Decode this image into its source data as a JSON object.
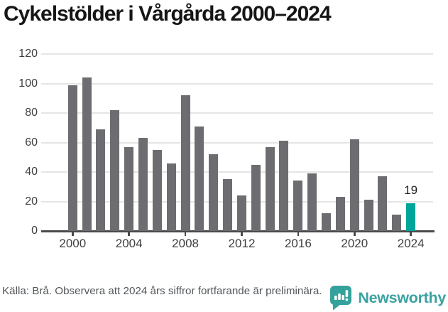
{
  "title": "Cykelstölder i Vårgårda 2000–2024",
  "chart_data": {
    "type": "bar",
    "x": [
      2000,
      2001,
      2002,
      2003,
      2004,
      2005,
      2006,
      2007,
      2008,
      2009,
      2010,
      2011,
      2012,
      2013,
      2014,
      2015,
      2016,
      2017,
      2018,
      2019,
      2020,
      2021,
      2022,
      2023,
      2024
    ],
    "values": [
      99,
      104,
      69,
      82,
      57,
      63,
      55,
      46,
      92,
      71,
      52,
      35,
      24,
      45,
      57,
      61,
      34,
      39,
      12,
      23,
      62,
      21,
      37,
      11,
      19
    ],
    "title": "Cykelstölder i Vårgårda 2000–2024",
    "xlabel": "",
    "ylabel": "",
    "ylim": [
      0,
      120
    ],
    "yticks": [
      0,
      20,
      40,
      60,
      80,
      100,
      120
    ],
    "xticks": [
      2000,
      2004,
      2008,
      2012,
      2016,
      2020,
      2024
    ],
    "grid": true,
    "legend": "none",
    "highlight_year": 2024,
    "highlight_label": "19",
    "bar_color": "#6d6d71",
    "highlight_color": "#00a59a"
  },
  "footer": {
    "source_note": "Källa: Brå. Observera att 2024 års siffror fortfarande är preliminära."
  },
  "branding": {
    "logo_text": "Newsworthy",
    "logo_color": "#3ba2a3",
    "icon_color": "#35a19c"
  }
}
